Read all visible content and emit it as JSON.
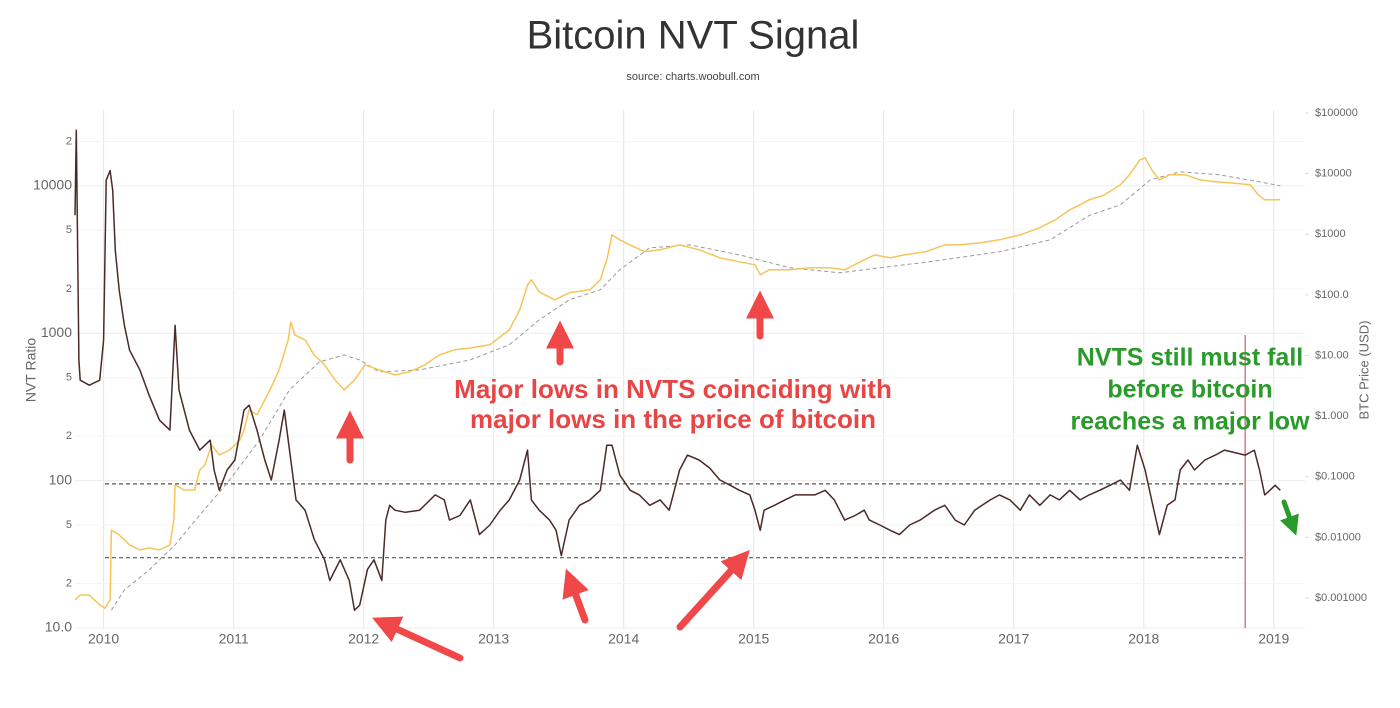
{
  "chart_data": {
    "type": "line",
    "title": "Bitcoin NVT Signal",
    "subtitle": "source: charts.woobull.com",
    "ylabel": "NVT Ratio",
    "y2label": "BTC Price (USD)",
    "log_y": true,
    "log_y2": true,
    "grid": true,
    "xlim": [
      2009.78,
      2019.24
    ],
    "xticks": [
      2010,
      2011,
      2012,
      2013,
      2014,
      2015,
      2016,
      2017,
      2018,
      2019
    ],
    "ylim": [
      10,
      32700
    ],
    "yticks": [
      {
        "value": 10,
        "label": "10.0"
      },
      {
        "value": 20,
        "label": "2"
      },
      {
        "value": 50,
        "label": "5"
      },
      100,
      {
        "value": 200,
        "label": "2"
      },
      {
        "value": 500,
        "label": "5"
      },
      1000,
      {
        "value": 2000,
        "label": "2"
      },
      {
        "value": 5000,
        "label": "5"
      },
      10000,
      {
        "value": 20000,
        "label": "2"
      }
    ],
    "y2lim": [
      0.00032,
      112000
    ],
    "y2ticks": [
      {
        "value": 0.001,
        "label": "$0.001000"
      },
      {
        "value": 0.01,
        "label": "$0.01000"
      },
      {
        "value": 0.1,
        "label": "$0.1000"
      },
      {
        "value": 1,
        "label": "$1.000"
      },
      {
        "value": 10,
        "label": "$10.00"
      },
      {
        "value": 100,
        "label": "$100.0"
      },
      {
        "value": 1000,
        "label": "$1000"
      },
      {
        "value": 10000,
        "label": "$10000"
      },
      {
        "value": 100000,
        "label": "$100000"
      }
    ],
    "reference_lines": [
      95,
      30
    ],
    "reference_color": "#555555",
    "vlines": [
      2018.78
    ],
    "vline_color": "#d08080",
    "series": [
      {
        "color": "#4a2a28",
        "style": "solid",
        "axis": "y",
        "x": [
          2009.78,
          2009.79,
          2009.81,
          2009.82,
          2009.89,
          2009.97,
          2010.0,
          2010.02,
          2010.05,
          2010.07,
          2010.09,
          2010.12,
          2010.16,
          2010.2,
          2010.28,
          2010.35,
          2010.43,
          2010.51,
          2010.55,
          2010.58,
          2010.66,
          2010.74,
          2010.82,
          2010.85,
          2010.89,
          2010.95,
          2011.01,
          2011.08,
          2011.12,
          2011.18,
          2011.24,
          2011.29,
          2011.35,
          2011.39,
          2011.43,
          2011.48,
          2011.55,
          2011.62,
          2011.7,
          2011.74,
          2011.82,
          2011.89,
          2011.93,
          2011.97,
          2012.03,
          2012.08,
          2012.14,
          2012.17,
          2012.2,
          2012.24,
          2012.32,
          2012.43,
          2012.55,
          2012.62,
          2012.66,
          2012.74,
          2012.82,
          2012.89,
          2012.97,
          2013.05,
          2013.12,
          2013.2,
          2013.26,
          2013.29,
          2013.35,
          2013.43,
          2013.48,
          2013.52,
          2013.58,
          2013.66,
          2013.74,
          2013.82,
          2013.87,
          2013.91,
          2013.97,
          2014.05,
          2014.12,
          2014.2,
          2014.28,
          2014.35,
          2014.43,
          2014.49,
          2014.58,
          2014.66,
          2014.74,
          2014.82,
          2014.89,
          2014.97,
          2015.01,
          2015.05,
          2015.08,
          2015.16,
          2015.24,
          2015.32,
          2015.39,
          2015.47,
          2015.55,
          2015.62,
          2015.7,
          2015.78,
          2015.85,
          2015.89,
          2015.97,
          2016.05,
          2016.12,
          2016.2,
          2016.28,
          2016.39,
          2016.47,
          2016.55,
          2016.62,
          2016.7,
          2016.82,
          2016.89,
          2016.97,
          2017.05,
          2017.12,
          2017.2,
          2017.28,
          2017.35,
          2017.43,
          2017.51,
          2017.58,
          2017.66,
          2017.74,
          2017.82,
          2017.89,
          2017.95,
          2018.01,
          2018.06,
          2018.12,
          2018.18,
          2018.24,
          2018.28,
          2018.34,
          2018.39,
          2018.47,
          2018.55,
          2018.62,
          2018.7,
          2018.78,
          2018.85,
          2018.89,
          2018.93,
          2018.97,
          2019.01,
          2019.05
        ],
        "values": [
          6310,
          23800,
          656,
          480,
          444,
          480,
          897,
          10900,
          12700,
          9330,
          3650,
          1960,
          1130,
          767,
          561,
          380,
          257,
          220,
          1130,
          411,
          220,
          161,
          188,
          118,
          86,
          118,
          138,
          301,
          325,
          220,
          138,
          101,
          188,
          301,
          161,
          74,
          63,
          40,
          29,
          21,
          29,
          21,
          13.2,
          14.3,
          25,
          29,
          21,
          54,
          68,
          63,
          61,
          63,
          80,
          74,
          54,
          58,
          74,
          43,
          50,
          63,
          74,
          101,
          161,
          74,
          63,
          54,
          46,
          31,
          54,
          68,
          74,
          86,
          174,
          174,
          109,
          86,
          80,
          68,
          74,
          63,
          118,
          149,
          138,
          122,
          101,
          93,
          86,
          80,
          63,
          46,
          63,
          68,
          74,
          80,
          80,
          80,
          86,
          74,
          54,
          58,
          63,
          54,
          50,
          46,
          43,
          50,
          54,
          63,
          68,
          54,
          50,
          63,
          74,
          80,
          74,
          63,
          80,
          68,
          80,
          74,
          86,
          74,
          80,
          86,
          93,
          101,
          86,
          174,
          118,
          74,
          43,
          68,
          74,
          118,
          138,
          118,
          138,
          149,
          161,
          155,
          149,
          161,
          118,
          80,
          86,
          93,
          86
        ]
      },
      {
        "color": "#f5c55a",
        "style": "solid",
        "axis": "y2",
        "x": [
          2009.78,
          2009.82,
          2009.89,
          2009.97,
          2010.01,
          2010.05,
          2010.06,
          2010.12,
          2010.2,
          2010.28,
          2010.35,
          2010.43,
          2010.51,
          2010.54,
          2010.55,
          2010.62,
          2010.7,
          2010.74,
          2010.78,
          2010.83,
          2010.89,
          2010.97,
          2011.05,
          2011.08,
          2011.12,
          2011.18,
          2011.24,
          2011.28,
          2011.35,
          2011.42,
          2011.44,
          2011.47,
          2011.55,
          2011.62,
          2011.7,
          2011.78,
          2011.85,
          2011.93,
          2012.01,
          2012.12,
          2012.24,
          2012.35,
          2012.47,
          2012.58,
          2012.7,
          2012.82,
          2012.97,
          2013.12,
          2013.2,
          2013.26,
          2013.29,
          2013.35,
          2013.47,
          2013.58,
          2013.74,
          2013.82,
          2013.87,
          2013.91,
          2013.97,
          2014.05,
          2014.16,
          2014.28,
          2014.43,
          2014.58,
          2014.74,
          2014.89,
          2015.01,
          2015.05,
          2015.12,
          2015.28,
          2015.43,
          2015.58,
          2015.7,
          2015.82,
          2015.93,
          2016.05,
          2016.16,
          2016.32,
          2016.47,
          2016.58,
          2016.74,
          2016.89,
          2017.05,
          2017.2,
          2017.32,
          2017.43,
          2017.51,
          2017.58,
          2017.7,
          2017.82,
          2017.89,
          2017.97,
          2018.01,
          2018.06,
          2018.12,
          2018.2,
          2018.32,
          2018.43,
          2018.55,
          2018.66,
          2018.82,
          2018.88,
          2018.93,
          2019.05
        ],
        "values": [
          0.00093,
          0.00112,
          0.00112,
          0.00077,
          0.00068,
          0.00093,
          0.0132,
          0.011,
          0.0075,
          0.0062,
          0.0067,
          0.0062,
          0.0075,
          0.0194,
          0.0733,
          0.0605,
          0.0605,
          0.129,
          0.157,
          0.335,
          0.229,
          0.277,
          0.405,
          0.592,
          1.27,
          1.05,
          1.85,
          2.71,
          5.79,
          18.1,
          35.8,
          21.9,
          18.1,
          10.2,
          7,
          3.96,
          2.71,
          3.96,
          7,
          5.79,
          4.79,
          5.36,
          7,
          10.2,
          12.4,
          13.3,
          15,
          26.4,
          56.5,
          146,
          177,
          112,
          82.6,
          108,
          121,
          177,
          378,
          977,
          809,
          668,
          513,
          553,
          668,
          553,
          408,
          351,
          313,
          214,
          259,
          259,
          279,
          279,
          259,
          351,
          457,
          408,
          457,
          513,
          668,
          668,
          721,
          809,
          977,
          1280,
          1730,
          2530,
          3060,
          3700,
          4470,
          6530,
          9550,
          16900,
          18200,
          11600,
          7900,
          9550,
          9550,
          7900,
          7330,
          7050,
          6530,
          4470,
          3700,
          3700
        ]
      },
      {
        "color": "#9a9a9a",
        "style": "dashed",
        "axis": "y2",
        "x": [
          2010.06,
          2010.16,
          2010.35,
          2010.55,
          2010.74,
          2010.97,
          2011.2,
          2011.43,
          2011.66,
          2011.85,
          2011.97,
          2012.12,
          2012.43,
          2012.82,
          2013.12,
          2013.35,
          2013.58,
          2013.82,
          2013.97,
          2014.2,
          2014.51,
          2014.89,
          2015.28,
          2015.66,
          2015.97,
          2016.35,
          2016.89,
          2017.28,
          2017.58,
          2017.82,
          2018.05,
          2018.28,
          2018.58,
          2018.89,
          2019.05
        ],
        "values": [
          0.00063,
          0.00136,
          0.0029,
          0.0075,
          0.0234,
          0.0885,
          0.405,
          2.71,
          7.84,
          10.2,
          8.46,
          5.36,
          5.79,
          8.46,
          15,
          38.7,
          82.6,
          121,
          259,
          597,
          668,
          457,
          279,
          231,
          279,
          351,
          513,
          809,
          2040,
          3060,
          7900,
          10700,
          9550,
          7330,
          6290
        ]
      }
    ],
    "annotations": [
      {
        "lines": [
          "Major lows in NVTS coinciding with",
          "major lows in the price of bitcoin"
        ],
        "color": "#e84646"
      },
      {
        "lines": [
          "NVTS still must fall",
          "before bitcoin",
          "reaches a major low"
        ],
        "color": "#2a9a2a"
      }
    ]
  }
}
